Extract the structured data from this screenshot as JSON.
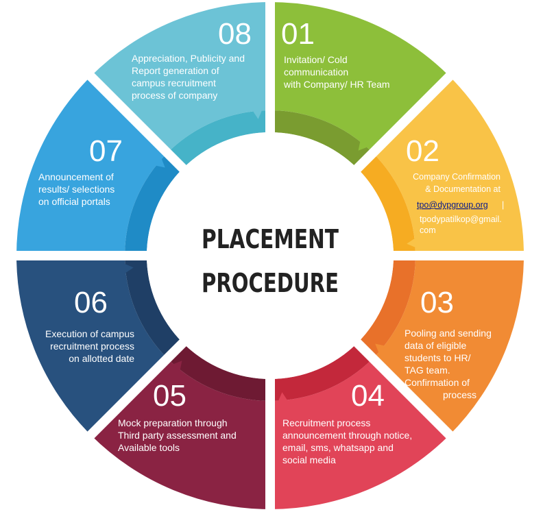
{
  "center": {
    "line1": "PLACEMENT",
    "line2": "PROCEDURE"
  },
  "steps": [
    {
      "number": "01",
      "color": "#8dbf3a",
      "inner_color": "#7a9c30",
      "lines": [
        "Invitation/ Cold",
        "communication",
        "with Company/ HR Team"
      ]
    },
    {
      "number": "02",
      "color": "#f9c347",
      "inner_color": "#f6ac22",
      "lines": [
        "Company Confirmation",
        "& Documentation at"
      ],
      "email_primary": "tpo@dypgroup.org",
      "separator": "|",
      "email_secondary_lines": [
        "tpodypatilkop@gmail.",
        "com"
      ]
    },
    {
      "number": "03",
      "color": "#f18b34",
      "inner_color": "#e8712a",
      "lines": [
        "Pooling and sending",
        "data of eligible",
        "students to HR/",
        "TAG team.",
        "Confirmation of",
        "process"
      ]
    },
    {
      "number": "04",
      "color": "#e14458",
      "inner_color": "#c3283b",
      "lines": [
        "Recruitment process",
        "announcement through notice,",
        "email, sms, whatsapp and",
        "social media"
      ]
    },
    {
      "number": "05",
      "color": "#8a2343",
      "inner_color": "#6e1a33",
      "lines": [
        "Mock preparation through",
        "Third party assessment and",
        "Available tools"
      ]
    },
    {
      "number": "06",
      "color": "#28517e",
      "inner_color": "#1f3f66",
      "lines": [
        "Execution of campus",
        "recruitment process",
        "on allotted date"
      ]
    },
    {
      "number": "07",
      "color": "#38a4de",
      "inner_color": "#1f8bc6",
      "lines": [
        "Announcement of",
        "results/ selections",
        "on official portals"
      ]
    },
    {
      "number": "08",
      "color": "#6cc3d6",
      "inner_color": "#46b3c8",
      "lines": [
        "Appreciation, Publicity and",
        "Report generation of",
        "campus recruitment",
        "process of company"
      ]
    }
  ]
}
